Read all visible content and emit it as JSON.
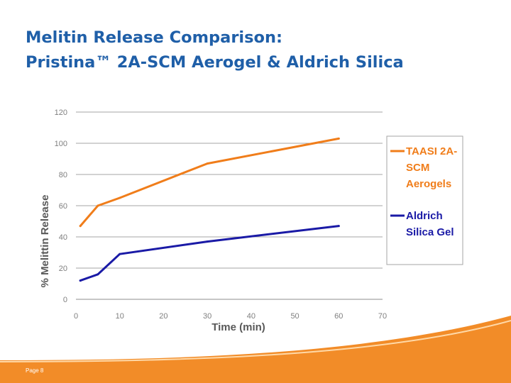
{
  "slide": {
    "title_line1": "Melitin Release Comparison:",
    "title_line2": "Pristina™ 2A-SCM Aerogel & Aldrich Silica",
    "page_label": "Page 8"
  },
  "colors": {
    "title": "#1f5fa8",
    "series_taasi": "#f07d1a",
    "series_aldrich": "#1a1aa6",
    "grid": "#a0a0a0",
    "footer_orange": "#f28c28"
  },
  "chart_data": {
    "type": "line",
    "title": "",
    "xlabel": "Time (min)",
    "ylabel": "% Melittin Release",
    "xlim": [
      0,
      70
    ],
    "ylim": [
      0,
      120
    ],
    "xticks": [
      0,
      10,
      20,
      30,
      40,
      50,
      60,
      70
    ],
    "yticks": [
      0,
      20,
      40,
      60,
      80,
      100,
      120
    ],
    "grid": "horizontal",
    "legend_position": "right",
    "series": [
      {
        "name": "TAASI 2A-SCM Aerogels",
        "legend_lines": [
          "TAASI 2A-",
          "SCM",
          "Aerogels"
        ],
        "color": "#f07d1a",
        "x": [
          1,
          5,
          10,
          30,
          60
        ],
        "y": [
          47,
          60,
          65,
          87,
          103
        ]
      },
      {
        "name": "Aldrich Silica Gel",
        "legend_lines": [
          "Aldrich",
          "Silica Gel"
        ],
        "color": "#1a1aa6",
        "x": [
          1,
          5,
          10,
          30,
          60
        ],
        "y": [
          12,
          16,
          29,
          37,
          47
        ]
      }
    ]
  }
}
